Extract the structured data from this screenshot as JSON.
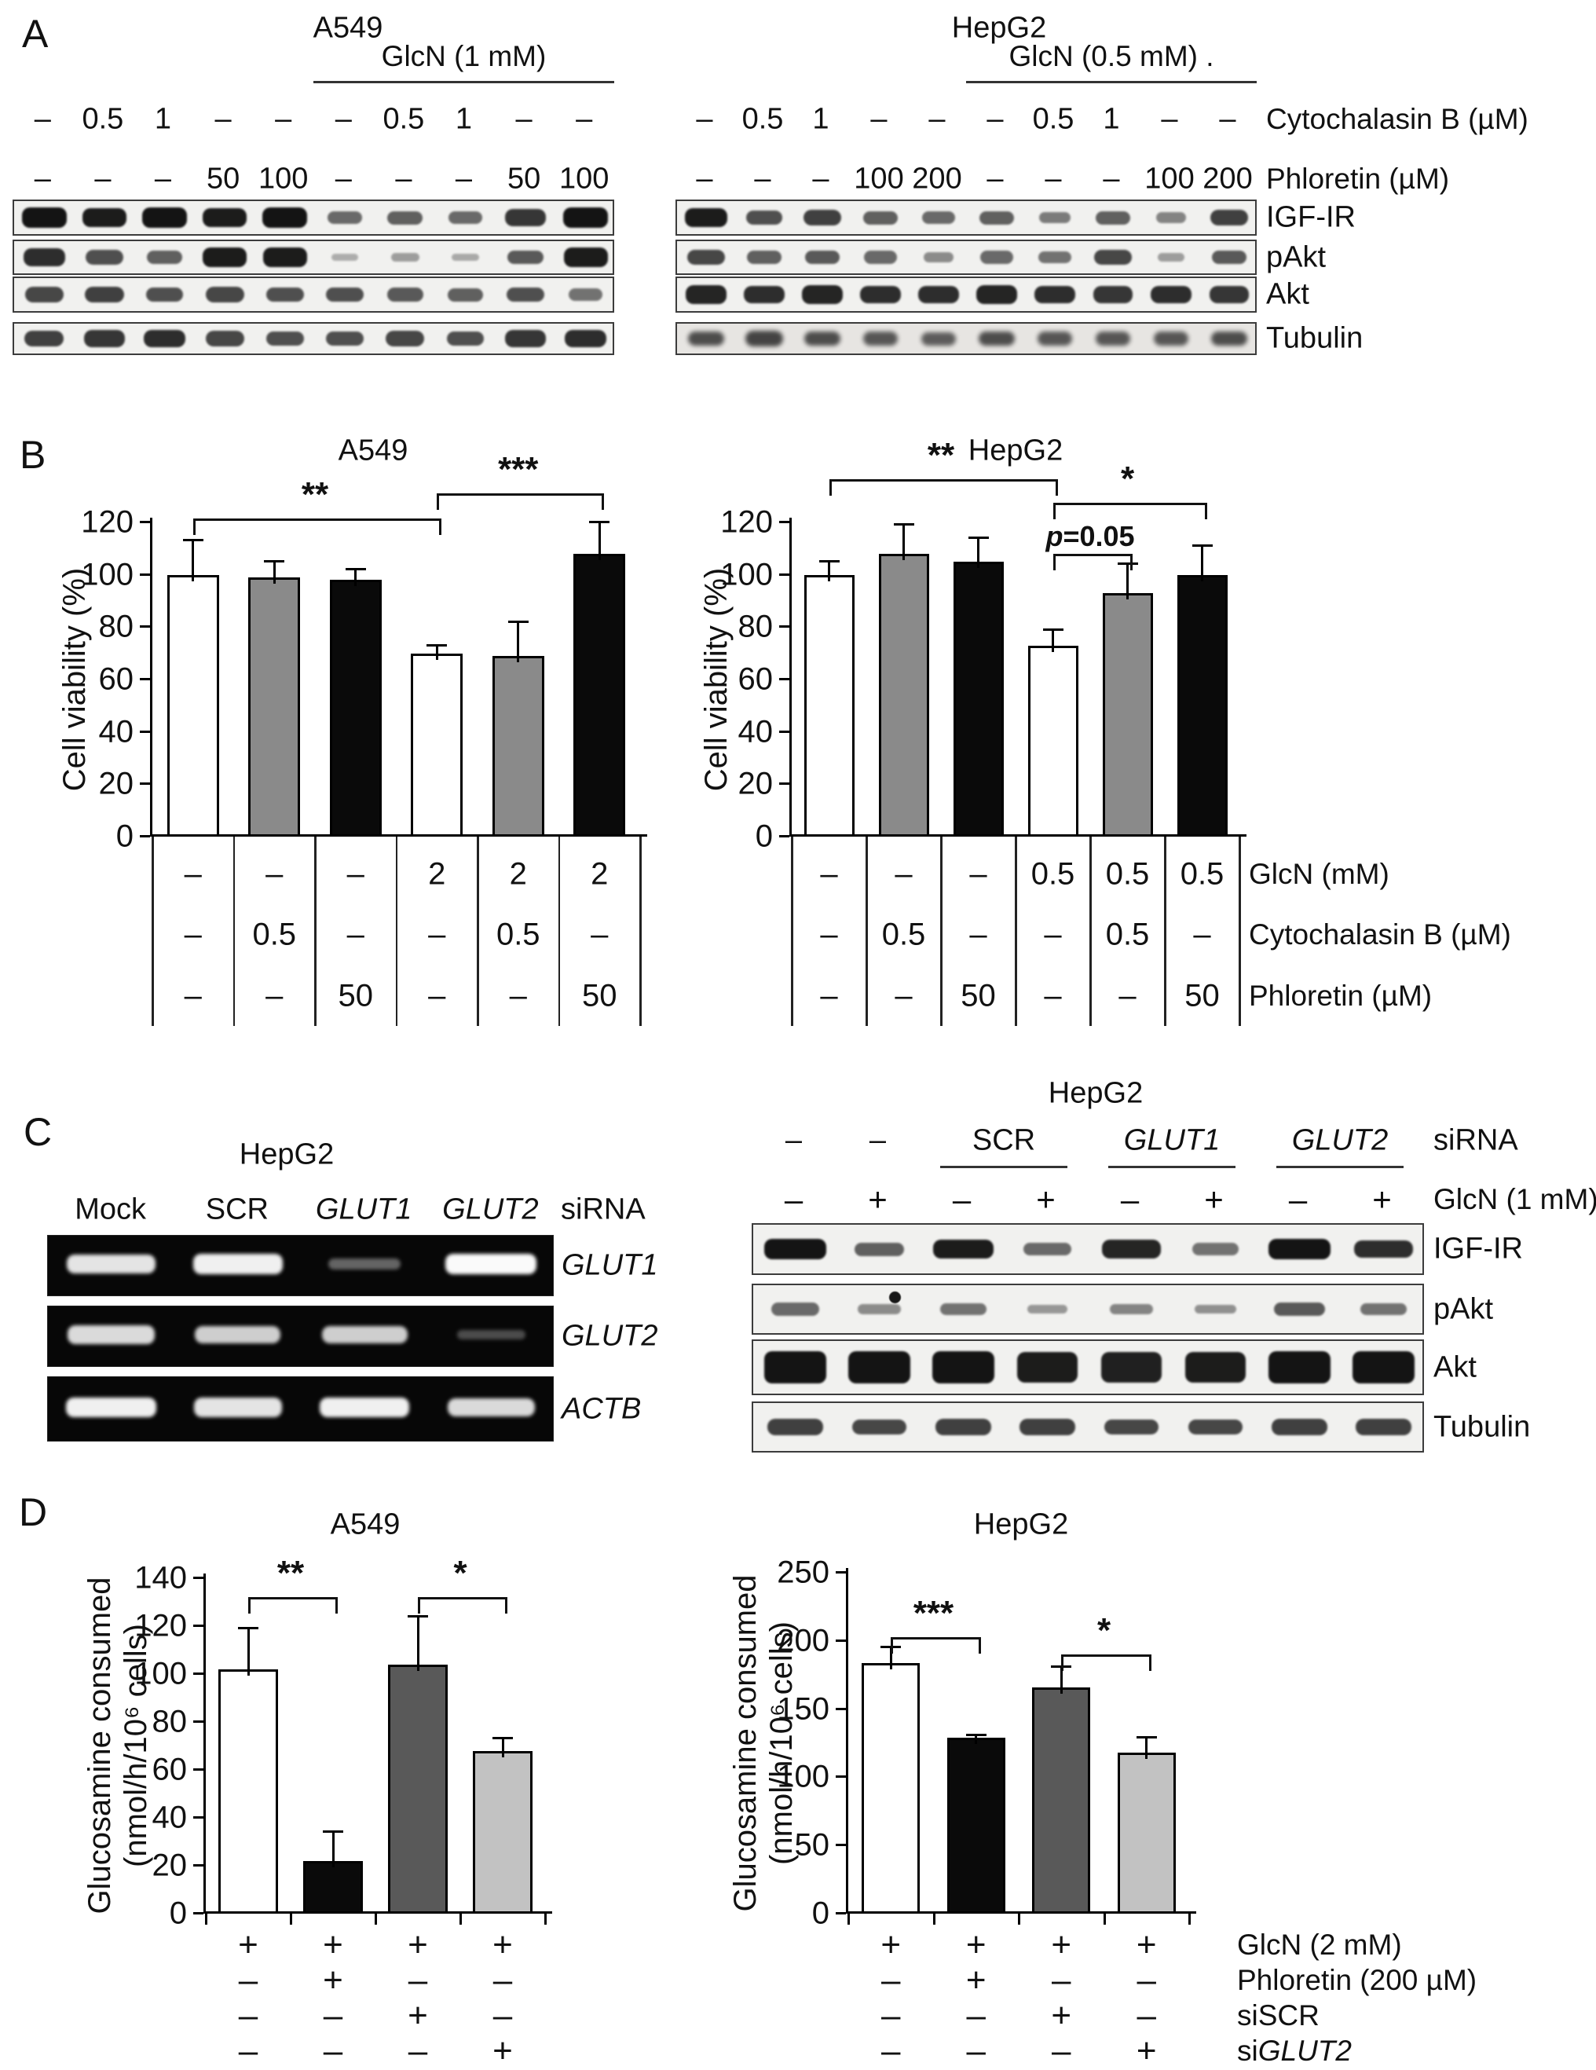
{
  "panelA": {
    "label": "A",
    "groups": [
      {
        "id": "a549",
        "title": "A549",
        "header": "GlcN (1 mM)",
        "cyto": [
          "–",
          "0.5",
          "1",
          "–",
          "–",
          "–",
          "0.5",
          "1",
          "–",
          "–"
        ],
        "phl": [
          "–",
          "–",
          "–",
          "50",
          "100",
          "–",
          "–",
          "–",
          "50",
          "100"
        ],
        "blots": [
          {
            "name": "IGF-IR",
            "bands": [
              0.95,
              0.9,
              0.95,
              0.9,
              0.95,
              0.45,
              0.5,
              0.45,
              0.75,
              0.95
            ]
          },
          {
            "name": "pAkt",
            "bands": [
              0.8,
              0.6,
              0.5,
              0.9,
              0.9,
              0.06,
              0.15,
              0.08,
              0.55,
              0.9
            ]
          },
          {
            "name": "Akt",
            "bands": [
              0.65,
              0.7,
              0.6,
              0.65,
              0.6,
              0.6,
              0.55,
              0.5,
              0.6,
              0.4
            ]
          },
          {
            "name": "Tubulin",
            "bands": [
              0.7,
              0.75,
              0.8,
              0.65,
              0.6,
              0.6,
              0.65,
              0.6,
              0.75,
              0.8
            ]
          }
        ]
      },
      {
        "id": "hepg2",
        "title": "HepG2",
        "header": "GlcN (0.5 mM) .",
        "cyto": [
          "–",
          "0.5",
          "1",
          "–",
          "–",
          "–",
          "0.5",
          "1",
          "–",
          "–"
        ],
        "phl": [
          "–",
          "–",
          "–",
          "100",
          "200",
          "–",
          "–",
          "–",
          "100",
          "200"
        ],
        "cyto_label": "Cytochalasin B (µM)",
        "phl_label": "Phloretin (µM)",
        "blots": [
          {
            "name": "IGF-IR",
            "bands": [
              0.9,
              0.6,
              0.7,
              0.5,
              0.45,
              0.5,
              0.35,
              0.5,
              0.3,
              0.7
            ]
          },
          {
            "name": "pAkt",
            "bands": [
              0.65,
              0.5,
              0.55,
              0.45,
              0.25,
              0.45,
              0.4,
              0.65,
              0.15,
              0.55
            ]
          },
          {
            "name": "Akt",
            "bands": [
              0.85,
              0.8,
              0.85,
              0.8,
              0.8,
              0.85,
              0.8,
              0.75,
              0.8,
              0.75
            ]
          },
          {
            "name": "Tubulin",
            "bands": [
              0.6,
              0.65,
              0.6,
              0.55,
              0.5,
              0.6,
              0.55,
              0.55,
              0.55,
              0.6
            ],
            "fuzzy": true
          }
        ]
      }
    ]
  },
  "panelB": {
    "label": "B"
  },
  "panelC": {
    "label": "C",
    "left": {
      "title": "HepG2",
      "col_labels": [
        [
          {
            "t": "Mock"
          }
        ],
        [
          {
            "t": "SCR"
          }
        ],
        [
          {
            "t": "GLUT1",
            "i": true
          }
        ],
        [
          {
            "t": "GLUT2",
            "i": true
          }
        ]
      ],
      "sirna_label": "siRNA",
      "gels": [
        {
          "label": [
            {
              "t": "GLUT1",
              "i": true
            }
          ],
          "bands": [
            0.9,
            0.95,
            0.3,
            1.0
          ]
        },
        {
          "label": [
            {
              "t": "GLUT2",
              "i": true
            }
          ],
          "bands": [
            0.85,
            0.8,
            0.8,
            0.18
          ]
        },
        {
          "label": [
            {
              "t": "ACTB",
              "i": true
            }
          ],
          "bands": [
            0.95,
            0.9,
            0.95,
            0.85
          ]
        }
      ]
    },
    "right": {
      "title": "HepG2",
      "groups": [
        {
          "runs": [
            {
              "t": "–"
            }
          ],
          "span": 1
        },
        {
          "runs": [
            {
              "t": "–"
            }
          ],
          "span": 1
        },
        {
          "runs": [
            {
              "t": "SCR"
            }
          ],
          "span": 2,
          "underline": true
        },
        {
          "runs": [
            {
              "t": "GLUT1",
              "i": true
            }
          ],
          "span": 2,
          "underline": true
        },
        {
          "runs": [
            {
              "t": "GLUT2",
              "i": true
            }
          ],
          "span": 2,
          "underline": true
        }
      ],
      "sirna_label": "siRNA",
      "glcn_values": [
        "–",
        "+",
        "–",
        "+",
        "–",
        "+",
        "–",
        "+"
      ],
      "glcn_label": "GlcN (1 mM)",
      "blots": [
        {
          "name": "IGF-IR",
          "bands": [
            0.95,
            0.5,
            0.9,
            0.45,
            0.85,
            0.4,
            0.95,
            0.8
          ]
        },
        {
          "name": "pAkt",
          "bands": [
            0.45,
            0.25,
            0.4,
            0.18,
            0.3,
            0.22,
            0.55,
            0.4
          ],
          "dot_lane": 1
        },
        {
          "name": "Akt",
          "bands": [
            0.95,
            0.95,
            0.95,
            0.9,
            0.88,
            0.9,
            0.95,
            0.95
          ],
          "thick": true
        },
        {
          "name": "Tubulin",
          "bands": [
            0.7,
            0.65,
            0.7,
            0.7,
            0.65,
            0.65,
            0.7,
            0.7
          ]
        }
      ]
    }
  },
  "panelD": {
    "label": "D"
  },
  "chart_data": [
    {
      "id": "B_A549",
      "type": "bar",
      "title": "A549",
      "ylabel": [
        "Cell viability (%)"
      ],
      "ylim": [
        0,
        120
      ],
      "ytick_step": 20,
      "grid": false,
      "values": [
        100,
        99,
        98,
        70,
        69,
        108
      ],
      "errors": [
        13,
        6,
        4,
        3,
        13,
        12
      ],
      "bar_colors": [
        "#ffffff",
        "#8a8a8a",
        "#0a0a0a",
        "#ffffff",
        "#8a8a8a",
        "#0a0a0a"
      ],
      "sig": [
        {
          "from": 0,
          "to": 3,
          "runs": [
            {
              "t": "**"
            }
          ],
          "at": 121.5
        },
        {
          "from": 3,
          "to": 5,
          "runs": [
            {
              "t": "***"
            }
          ],
          "at": 131
        }
      ],
      "table": {
        "borders": true,
        "rows": [
          {
            "values": [
              "–",
              "–",
              "–",
              "2",
              "2",
              "2"
            ]
          },
          {
            "values": [
              "–",
              "0.5",
              "–",
              "–",
              "0.5",
              "–"
            ]
          },
          {
            "values": [
              "–",
              "–",
              "50",
              "–",
              "–",
              "50"
            ]
          }
        ]
      }
    },
    {
      "id": "B_HepG2",
      "type": "bar",
      "title": "HepG2",
      "ylabel": [
        "Cell viability (%)"
      ],
      "ylim": [
        0,
        120
      ],
      "ytick_step": 20,
      "grid": false,
      "values": [
        100,
        108,
        105,
        73,
        93,
        100
      ],
      "errors": [
        5,
        11,
        9,
        6,
        11,
        11
      ],
      "bar_colors": [
        "#ffffff",
        "#8a8a8a",
        "#0a0a0a",
        "#ffffff",
        "#8a8a8a",
        "#0a0a0a"
      ],
      "sig": [
        {
          "from": 0,
          "to": 3,
          "runs": [
            {
              "t": "**"
            }
          ],
          "at": 136.5
        },
        {
          "from": 3,
          "to": 5,
          "runs": [
            {
              "t": "*"
            }
          ],
          "at": 127.5
        },
        {
          "from": 3,
          "to": 4,
          "runs": [
            {
              "t": "p",
              "i": true
            },
            {
              "t": "=0.05"
            }
          ],
          "at": 108
        }
      ],
      "table": {
        "borders": true,
        "rows": [
          {
            "values": [
              "–",
              "–",
              "–",
              "0.5",
              "0.5",
              "0.5"
            ],
            "label": [
              {
                "t": "GlcN (mM)"
              }
            ]
          },
          {
            "values": [
              "–",
              "0.5",
              "–",
              "–",
              "0.5",
              "–"
            ],
            "label": [
              {
                "t": "Cytochalasin B (µM)"
              }
            ]
          },
          {
            "values": [
              "–",
              "–",
              "50",
              "–",
              "–",
              "50"
            ],
            "label": [
              {
                "t": "Phloretin (µM)"
              }
            ]
          }
        ]
      }
    },
    {
      "id": "D_A549",
      "type": "bar",
      "title": "A549",
      "ylabel": [
        "Glucosamine consumed",
        "(nmol/h/10⁶ cells)"
      ],
      "ylim": [
        0,
        140
      ],
      "ytick_step": 20,
      "grid": false,
      "values": [
        102,
        22,
        104,
        68
      ],
      "errors": [
        17,
        12,
        20,
        5
      ],
      "bar_colors": [
        "#ffffff",
        "#0a0a0a",
        "#595959",
        "#c2c2c2"
      ],
      "sig": [
        {
          "from": 0,
          "to": 1,
          "runs": [
            {
              "t": "**"
            }
          ],
          "at": 132
        },
        {
          "from": 2,
          "to": 3,
          "runs": [
            {
              "t": "*"
            }
          ],
          "at": 132
        }
      ],
      "table": {
        "borders": false,
        "rows": [
          {
            "values": [
              "+",
              "+",
              "+",
              "+"
            ]
          },
          {
            "values": [
              "–",
              "+",
              "–",
              "–"
            ]
          },
          {
            "values": [
              "–",
              "–",
              "+",
              "–"
            ]
          },
          {
            "values": [
              "–",
              "–",
              "–",
              "+"
            ]
          }
        ]
      }
    },
    {
      "id": "D_HepG2",
      "type": "bar",
      "title": "HepG2",
      "ylabel": [
        "Glucosamine consumed",
        "(nmol/h/10⁶ cells)"
      ],
      "ylim": [
        0,
        250
      ],
      "ytick_step": 50,
      "grid": false,
      "values": [
        184,
        129,
        166,
        118
      ],
      "errors": [
        11,
        2,
        15,
        11
      ],
      "bar_colors": [
        "#ffffff",
        "#0a0a0a",
        "#595959",
        "#c2c2c2"
      ],
      "sig": [
        {
          "from": 0,
          "to": 1,
          "runs": [
            {
              "t": "***"
            }
          ],
          "at": 203
        },
        {
          "from": 2,
          "to": 3,
          "runs": [
            {
              "t": "*"
            }
          ],
          "at": 190
        }
      ],
      "table": {
        "borders": false,
        "rows": [
          {
            "values": [
              "+",
              "+",
              "+",
              "+"
            ],
            "label": [
              {
                "t": "GlcN (2 mM)"
              }
            ]
          },
          {
            "values": [
              "–",
              "+",
              "–",
              "–"
            ],
            "label": [
              {
                "t": "Phloretin (200 µM)"
              }
            ]
          },
          {
            "values": [
              "–",
              "–",
              "+",
              "–"
            ],
            "label": [
              {
                "t": "siSCR"
              }
            ]
          },
          {
            "values": [
              "–",
              "–",
              "–",
              "+"
            ],
            "label": [
              {
                "t": "si"
              },
              {
                "t": "GLUT2",
                "i": true
              }
            ]
          }
        ]
      }
    }
  ]
}
